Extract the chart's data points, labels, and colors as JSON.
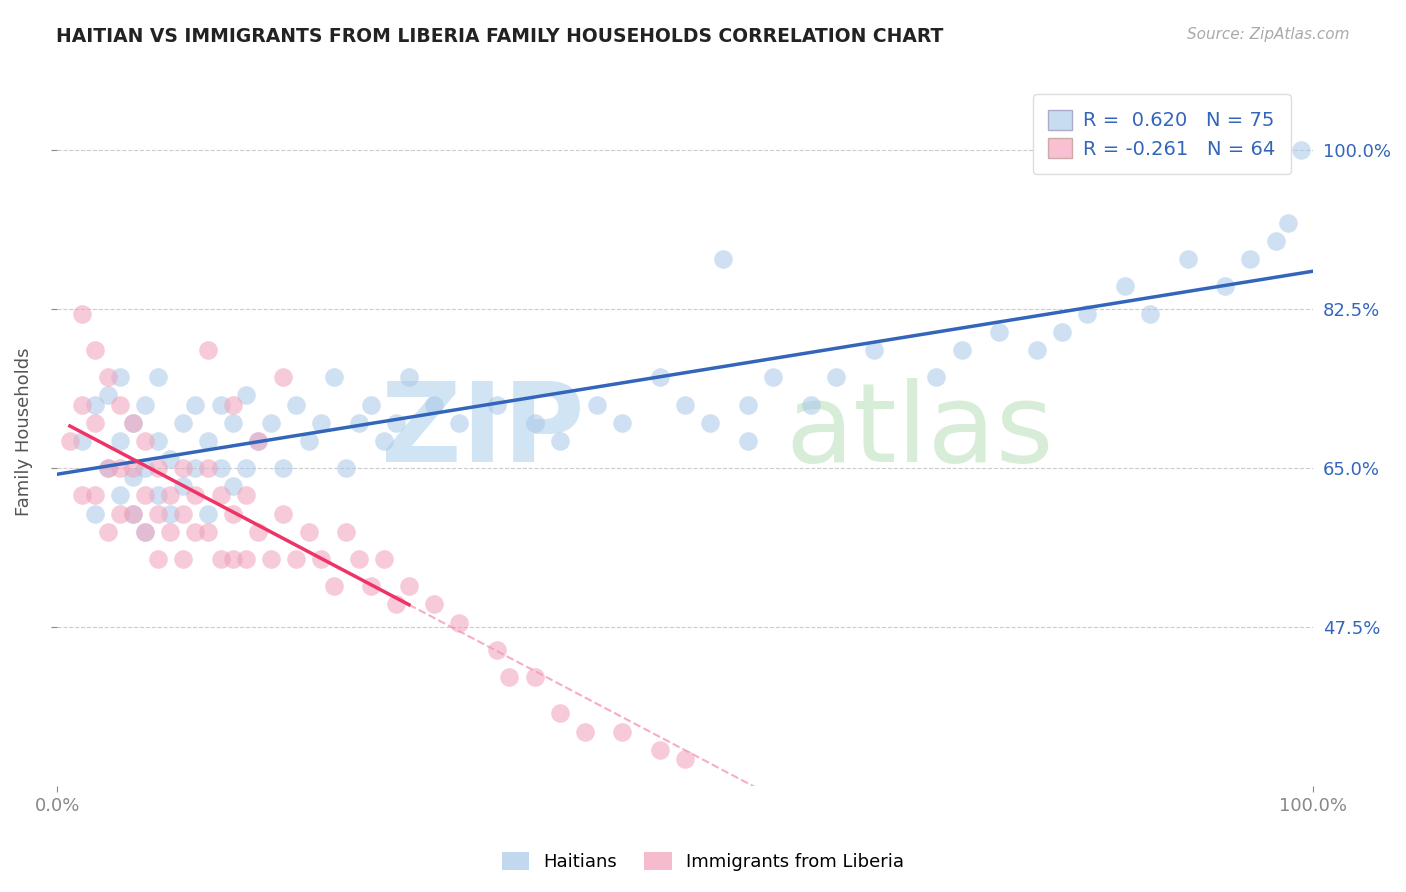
{
  "title": "HAITIAN VS IMMIGRANTS FROM LIBERIA FAMILY HOUSEHOLDS CORRELATION CHART",
  "source": "Source: ZipAtlas.com",
  "ylabel": "Family Households",
  "xlim": [
    0.0,
    1.0
  ],
  "ylim": [
    0.3,
    1.08
  ],
  "yticks": [
    0.475,
    0.65,
    0.825,
    1.0
  ],
  "ytick_labels": [
    "47.5%",
    "65.0%",
    "82.5%",
    "100.0%"
  ],
  "xtick_labels": [
    "0.0%",
    "100.0%"
  ],
  "blue_R": 0.62,
  "blue_N": 75,
  "pink_R": -0.261,
  "pink_N": 64,
  "blue_color": "#A8C8E8",
  "pink_color": "#F0A0B8",
  "blue_line_color": "#3366BB",
  "pink_line_color": "#EE3366",
  "legend_blue_face": "#C8DCF0",
  "legend_pink_face": "#F8C0D0",
  "blue_scatter_x": [
    0.02,
    0.03,
    0.03,
    0.04,
    0.04,
    0.05,
    0.05,
    0.05,
    0.06,
    0.06,
    0.06,
    0.07,
    0.07,
    0.07,
    0.08,
    0.08,
    0.08,
    0.09,
    0.09,
    0.1,
    0.1,
    0.11,
    0.11,
    0.12,
    0.12,
    0.13,
    0.13,
    0.14,
    0.14,
    0.15,
    0.15,
    0.16,
    0.17,
    0.18,
    0.19,
    0.2,
    0.21,
    0.22,
    0.23,
    0.24,
    0.25,
    0.26,
    0.27,
    0.28,
    0.3,
    0.32,
    0.35,
    0.38,
    0.4,
    0.43,
    0.45,
    0.48,
    0.5,
    0.52,
    0.53,
    0.55,
    0.55,
    0.57,
    0.6,
    0.62,
    0.65,
    0.7,
    0.72,
    0.75,
    0.78,
    0.8,
    0.82,
    0.85,
    0.87,
    0.9,
    0.93,
    0.95,
    0.97,
    0.98,
    0.99
  ],
  "blue_scatter_y": [
    0.68,
    0.6,
    0.72,
    0.65,
    0.73,
    0.62,
    0.68,
    0.75,
    0.6,
    0.64,
    0.7,
    0.58,
    0.65,
    0.72,
    0.62,
    0.68,
    0.75,
    0.6,
    0.66,
    0.63,
    0.7,
    0.65,
    0.72,
    0.6,
    0.68,
    0.65,
    0.72,
    0.63,
    0.7,
    0.65,
    0.73,
    0.68,
    0.7,
    0.65,
    0.72,
    0.68,
    0.7,
    0.75,
    0.65,
    0.7,
    0.72,
    0.68,
    0.7,
    0.75,
    0.72,
    0.7,
    0.72,
    0.7,
    0.68,
    0.72,
    0.7,
    0.75,
    0.72,
    0.7,
    0.88,
    0.68,
    0.72,
    0.75,
    0.72,
    0.75,
    0.78,
    0.75,
    0.78,
    0.8,
    0.78,
    0.8,
    0.82,
    0.85,
    0.82,
    0.88,
    0.85,
    0.88,
    0.9,
    0.92,
    1.0
  ],
  "pink_scatter_x": [
    0.01,
    0.02,
    0.02,
    0.02,
    0.03,
    0.03,
    0.03,
    0.04,
    0.04,
    0.04,
    0.05,
    0.05,
    0.05,
    0.06,
    0.06,
    0.06,
    0.07,
    0.07,
    0.07,
    0.08,
    0.08,
    0.08,
    0.09,
    0.09,
    0.1,
    0.1,
    0.1,
    0.11,
    0.11,
    0.12,
    0.12,
    0.13,
    0.13,
    0.14,
    0.14,
    0.15,
    0.15,
    0.16,
    0.17,
    0.18,
    0.19,
    0.2,
    0.21,
    0.22,
    0.23,
    0.24,
    0.25,
    0.26,
    0.27,
    0.28,
    0.3,
    0.32,
    0.35,
    0.36,
    0.38,
    0.4,
    0.42,
    0.45,
    0.48,
    0.5,
    0.12,
    0.14,
    0.16,
    0.18
  ],
  "pink_scatter_y": [
    0.68,
    0.82,
    0.72,
    0.62,
    0.78,
    0.7,
    0.62,
    0.75,
    0.65,
    0.58,
    0.72,
    0.65,
    0.6,
    0.7,
    0.65,
    0.6,
    0.68,
    0.62,
    0.58,
    0.65,
    0.6,
    0.55,
    0.62,
    0.58,
    0.65,
    0.6,
    0.55,
    0.62,
    0.58,
    0.65,
    0.58,
    0.62,
    0.55,
    0.6,
    0.55,
    0.62,
    0.55,
    0.58,
    0.55,
    0.6,
    0.55,
    0.58,
    0.55,
    0.52,
    0.58,
    0.55,
    0.52,
    0.55,
    0.5,
    0.52,
    0.5,
    0.48,
    0.45,
    0.42,
    0.42,
    0.38,
    0.36,
    0.36,
    0.34,
    0.33,
    0.78,
    0.72,
    0.68,
    0.75
  ]
}
